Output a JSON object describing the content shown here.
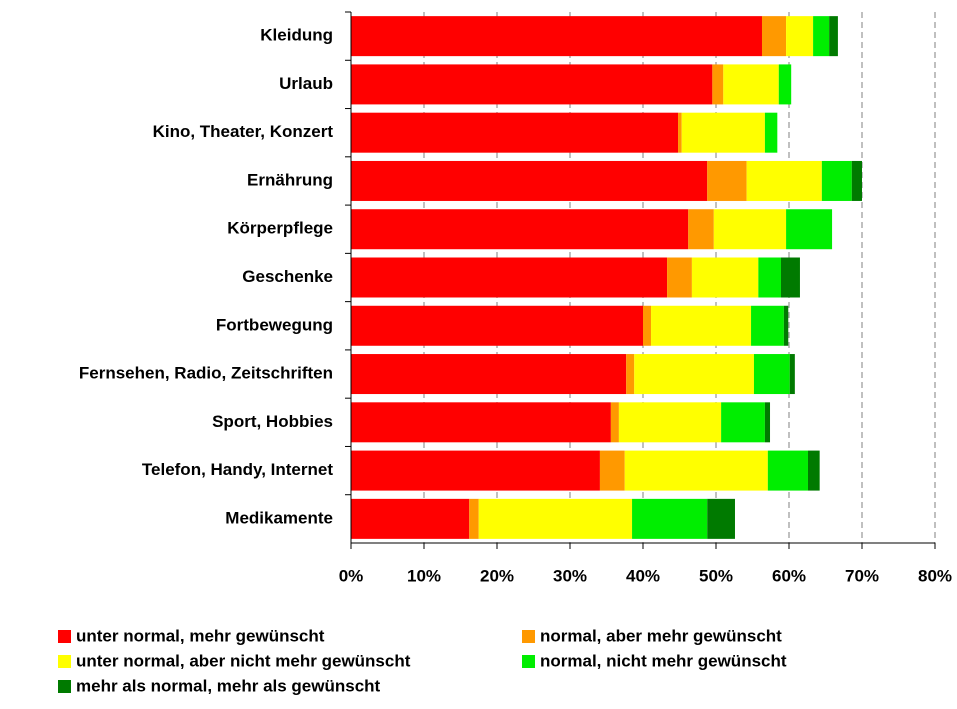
{
  "chart_data": {
    "type": "stacked_bar_horizontal",
    "categories": [
      "Kleidung",
      "Urlaub",
      "Kino, Theater, Konzert",
      "Ernährung",
      "Körperpflege",
      "Geschenke",
      "Fortbewegung",
      "Fernsehen, Radio, Zeitschriften",
      "Sport, Hobbies",
      "Telefon, Handy, Internet",
      "Medikamente"
    ],
    "series": [
      {
        "name": "unter normal, mehr gewünscht",
        "color": "#ff0000",
        "values": [
          56.3,
          49.5,
          44.8,
          48.8,
          46.2,
          43.3,
          40.0,
          37.7,
          35.6,
          34.1,
          16.2
        ]
      },
      {
        "name": "normal, aber mehr gewünscht",
        "color": "#ff9900",
        "values": [
          3.3,
          1.5,
          0.5,
          5.4,
          3.5,
          3.4,
          1.1,
          1.1,
          1.1,
          3.4,
          1.3
        ]
      },
      {
        "name": "unter normal, aber nicht mehr gewünscht",
        "color": "#ffff00",
        "values": [
          3.7,
          7.6,
          11.4,
          10.3,
          9.9,
          9.1,
          13.7,
          16.4,
          14.0,
          19.6,
          21.0
        ]
      },
      {
        "name": "normal, nicht mehr gewünscht",
        "color": "#00ee00",
        "values": [
          2.2,
          1.7,
          1.7,
          4.1,
          6.3,
          3.1,
          4.5,
          4.9,
          6.0,
          5.5,
          10.3
        ]
      },
      {
        "name": "mehr als normal, mehr als gewünscht",
        "color": "#007a00",
        "values": [
          1.2,
          0,
          0,
          1.4,
          0,
          2.6,
          0.6,
          0.7,
          0.7,
          1.6,
          3.8
        ]
      }
    ],
    "xlim": [
      0,
      80
    ],
    "xticks": [
      {
        "value": 0,
        "label": "0%"
      },
      {
        "value": 10,
        "label": "10%"
      },
      {
        "value": 20,
        "label": "20%"
      },
      {
        "value": 30,
        "label": "30%"
      },
      {
        "value": 40,
        "label": "40%"
      },
      {
        "value": 50,
        "label": "50%"
      },
      {
        "value": 60,
        "label": "60%"
      },
      {
        "value": 70,
        "label": "70%"
      },
      {
        "value": 80,
        "label": "80%"
      }
    ],
    "grid": true
  }
}
